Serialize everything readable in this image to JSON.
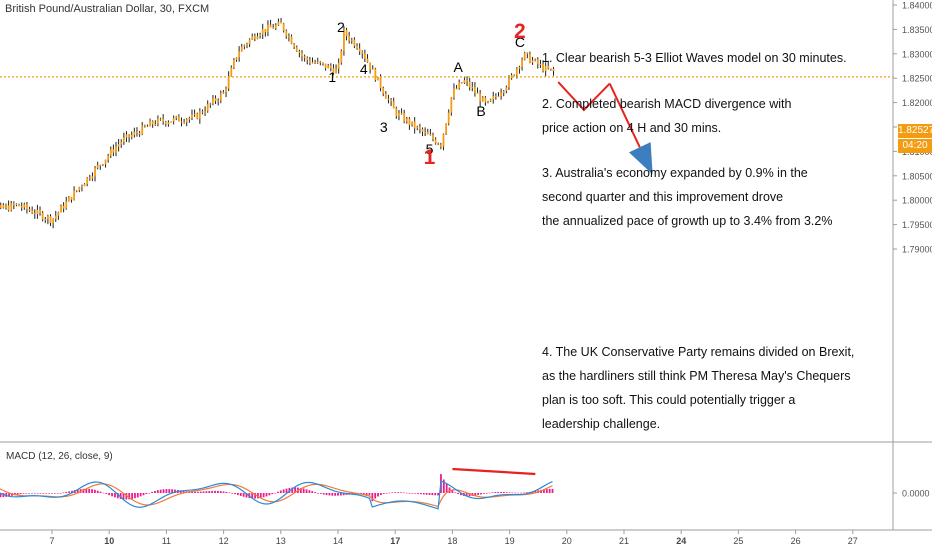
{
  "title": "British Pound/Australian Dollar, 30, FXCM",
  "notes": [
    [
      "1. Clear bearish 5-3 Elliot Waves model on 30 minutes."
    ],
    [
      "2. Completed bearish MACD divergence with",
      "price action on 4 H and 30 mins."
    ],
    [
      "3. Australia's economy expanded by 0.9% in the",
      "second quarter and this improvement drove",
      "the annualized pace of growth up to 3.4% from 3.2%"
    ],
    [
      "4. The UK Conservative Party remains divided on Brexit,",
      "as the hardliners still think PM Theresa May's Chequers",
      "plan is too soft. This could potentially trigger a",
      "leadership challenge."
    ]
  ],
  "macd_title": "MACD (12, 26, close, 9)",
  "wave_labels": [
    "2",
    "1",
    "4",
    "3",
    "5",
    "1",
    "A",
    "B",
    "C",
    "2"
  ],
  "price_badge": "1.82527",
  "time_badge": "04:20",
  "colors": {
    "candle": "#f39c12",
    "wick": "#222222",
    "projection": "#e8231f",
    "arrowhead": "#3d7ebf",
    "current_price_line": "#f39c12",
    "macd_line": "#2a8bd6",
    "signal_line": "#f27a3c",
    "histogram": "#e91e8c",
    "divergence": "#e8231f"
  },
  "chart_data": {
    "type": "candlestick",
    "title": "British Pound/Australian Dollar, 30, FXCM",
    "x_ticks": [
      "7",
      "10",
      "11",
      "12",
      "13",
      "14",
      "17",
      "18",
      "19",
      "20",
      "21",
      "24",
      "25",
      "26",
      "27"
    ],
    "y_ticks": [
      "1.84000",
      "1.83500",
      "1.83000",
      "1.82500",
      "1.82000",
      "1.81500",
      "1.81000",
      "1.80500",
      "1.80000",
      "1.79500",
      "1.79000"
    ],
    "ylim": [
      1.79,
      1.84
    ],
    "current_price": 1.82527,
    "price_path": [
      [
        5.6,
        1.797
      ],
      [
        6.4,
        1.799
      ],
      [
        7.0,
        1.796
      ],
      [
        7.5,
        1.803
      ],
      [
        8.2,
        1.812
      ],
      [
        8.8,
        1.816
      ],
      [
        9.5,
        1.817
      ],
      [
        10.0,
        1.822
      ],
      [
        10.25,
        1.8305
      ],
      [
        10.6,
        1.8345
      ],
      [
        11.0,
        1.836
      ],
      [
        11.4,
        1.829
      ],
      [
        12.0,
        1.8265
      ],
      [
        12.1,
        1.8343
      ],
      [
        12.4,
        1.831
      ],
      [
        12.6,
        1.8265
      ],
      [
        13.0,
        1.818
      ],
      [
        13.4,
        1.8145
      ],
      [
        13.8,
        1.8115
      ],
      [
        14.0,
        1.822
      ],
      [
        14.2,
        1.8245
      ],
      [
        14.35,
        1.8228
      ],
      [
        14.6,
        1.8193
      ],
      [
        15.0,
        1.8245
      ],
      [
        15.25,
        1.8297
      ],
      [
        15.6,
        1.827
      ],
      [
        15.8,
        1.8262
      ]
    ],
    "wave_points": [
      {
        "label": "2",
        "x": 12.05,
        "y": 1.8355
      },
      {
        "label": "1",
        "x": 11.9,
        "y": 1.8253
      },
      {
        "label": "4",
        "x": 12.45,
        "y": 1.8268
      },
      {
        "label": "3",
        "x": 12.8,
        "y": 1.815
      },
      {
        "label": "5",
        "x": 13.6,
        "y": 1.8105
      },
      {
        "label": "1",
        "x": 13.6,
        "y": 1.8087
      },
      {
        "label": "A",
        "x": 14.1,
        "y": 1.8272
      },
      {
        "label": "B",
        "x": 14.5,
        "y": 1.8183
      },
      {
        "label": "C",
        "x": 15.18,
        "y": 1.8324
      },
      {
        "label": "2",
        "x": 15.18,
        "y": 1.8345
      }
    ],
    "projection": [
      [
        15.85,
        1.8242
      ],
      [
        16.3,
        1.8185
      ],
      [
        16.75,
        1.8239
      ],
      [
        17.5,
        1.8053
      ]
    ],
    "macd": {
      "title": "MACD (12, 26, close, 9)",
      "y_ticks": [
        "0.0000"
      ],
      "divergence_line": [
        [
          14.0,
          0.0023
        ],
        [
          15.45,
          0.0019
        ]
      ]
    }
  }
}
